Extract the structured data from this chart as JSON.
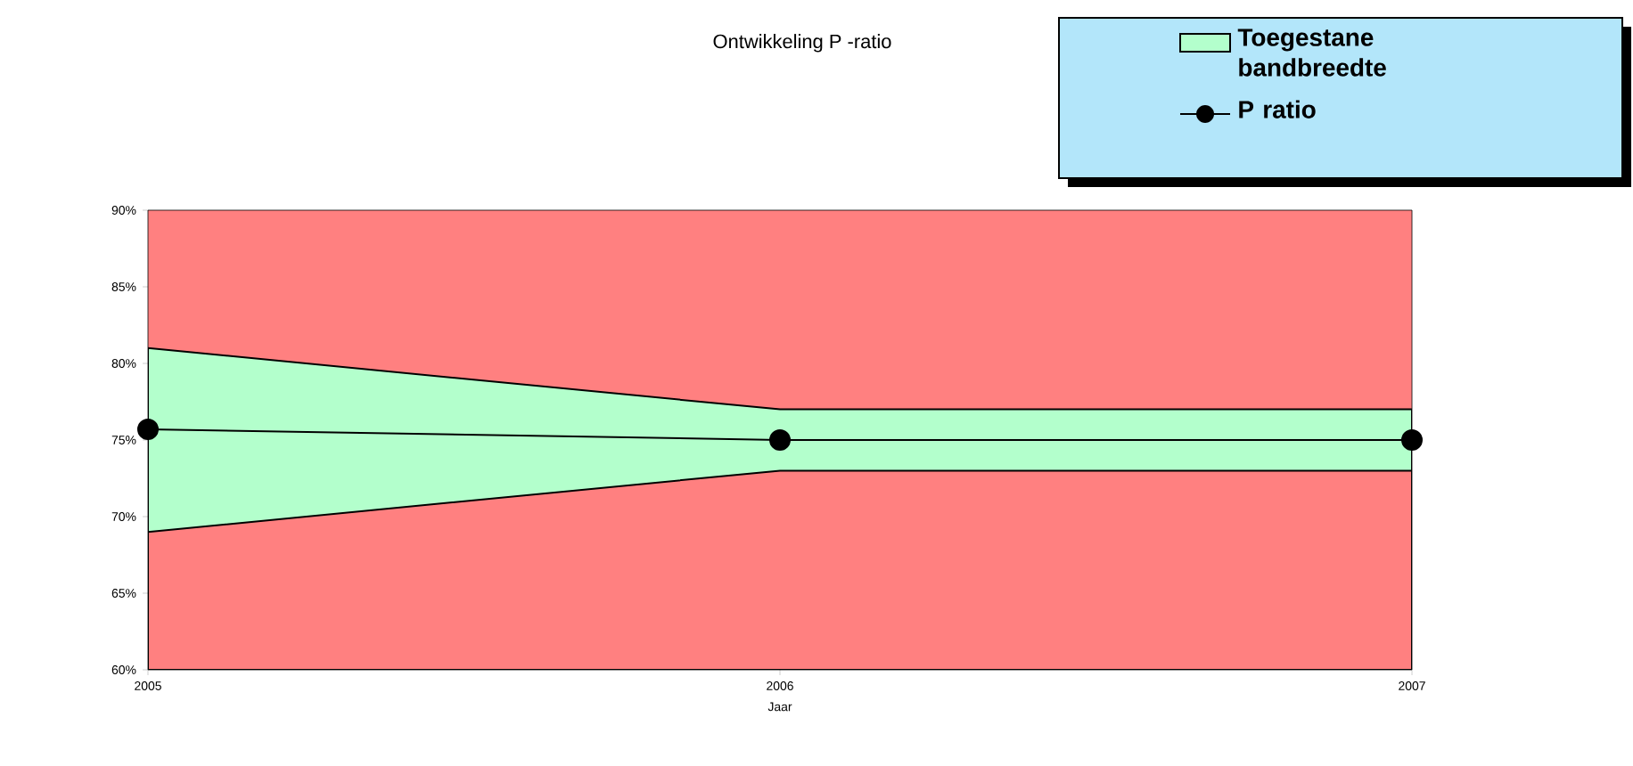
{
  "chart_data": {
    "type": "area",
    "title": "Ontwikkeling P -ratio",
    "xlabel": "Jaar",
    "x": [
      2005,
      2006,
      2007
    ],
    "xlim": [
      2005,
      2007
    ],
    "xticks": [
      2005,
      2006,
      2007
    ],
    "ylim": [
      60,
      90
    ],
    "yticks": [
      {
        "value": 60,
        "label": "60%"
      },
      {
        "value": 65,
        "label": "65%"
      },
      {
        "value": 70,
        "label": "70%"
      },
      {
        "value": 75,
        "label": "75%"
      },
      {
        "value": 80,
        "label": "80%"
      },
      {
        "value": 85,
        "label": "85%"
      },
      {
        "value": 90,
        "label": "90%"
      }
    ],
    "series": [
      {
        "name": "Toegestane bandbreedte",
        "color": "#b3ffcc",
        "values": [
          81,
          77,
          77
        ]
      },
      {
        "color": "#ff8080",
        "values": [
          69,
          73,
          73
        ]
      },
      {
        "name": "P ratio",
        "type": "line",
        "color": "#000000",
        "values": [
          75.7,
          75,
          75
        ],
        "marker": "circle",
        "line_style": "solid"
      }
    ],
    "legend": "top right",
    "grid": false
  }
}
